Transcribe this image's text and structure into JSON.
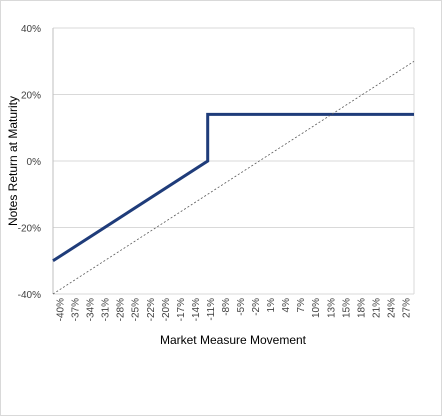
{
  "chart_data": {
    "type": "line",
    "title": "",
    "xlabel": "Market Measure Movement",
    "ylabel": "Notes Return at Maturity",
    "x_ticks": [
      "-40%",
      "-37%",
      "-34%",
      "-31%",
      "-28%",
      "-25%",
      "-22%",
      "-20%",
      "-17%",
      "-14%",
      "-11%",
      "-8%",
      "-5%",
      "-2%",
      "1%",
      "4%",
      "7%",
      "10%",
      "13%",
      "15%",
      "18%",
      "21%",
      "24%",
      "27%"
    ],
    "y_ticks": [
      "40%",
      "20%",
      "0%",
      "-20%",
      "-40%"
    ],
    "xlim": [
      -40,
      30
    ],
    "ylim": [
      -40,
      40
    ],
    "grid": "horizontal",
    "legend": "none",
    "series": [
      {
        "style": "solid-thick",
        "color": "#1f3c7a",
        "x": [
          -40,
          -10,
          -10,
          30
        ],
        "y": [
          -30,
          0,
          14,
          14
        ]
      },
      {
        "style": "dashed-thin",
        "color": "#595959",
        "x": [
          -40,
          30
        ],
        "y": [
          -40,
          30
        ]
      }
    ]
  }
}
